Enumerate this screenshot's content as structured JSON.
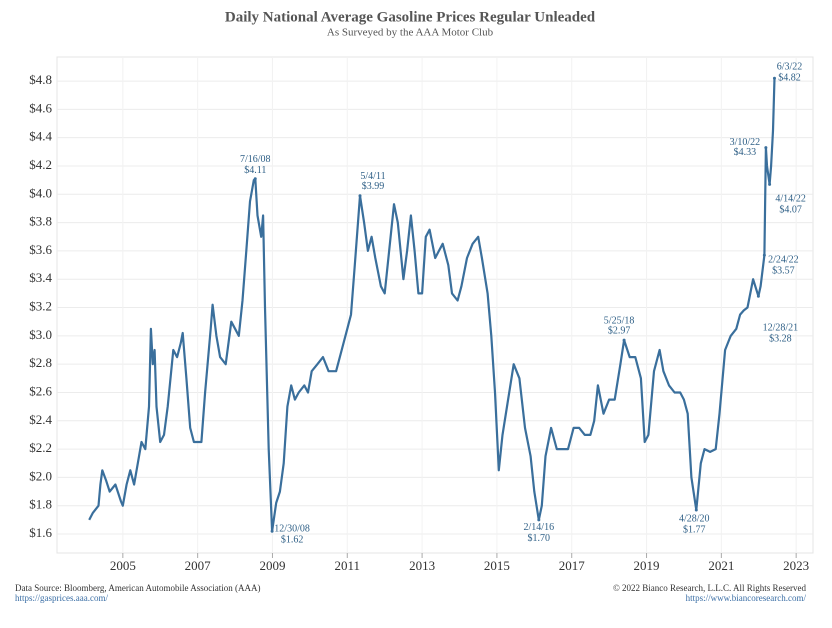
{
  "chart_data": {
    "type": "line",
    "title": "Daily National Average Gasoline Prices Regular Unleaded",
    "subtitle": "As Surveyed by the AAA Motor Club",
    "source": "Data Source: Bloomberg, American Automobile Association (AAA)",
    "source_url": "https://gasprices.aaa.com/",
    "copyright": "© 2022 Bianco Research, L.L.C. All Rights Reserved",
    "copyright_url": "https://www.biancoresearch.com/",
    "xlim": [
      2003.24,
      2023.45
    ],
    "xticks": [
      2005,
      2007,
      2009,
      2011,
      2013,
      2015,
      2017,
      2019,
      2021,
      2023
    ],
    "ylim": [
      1.466,
      4.97
    ],
    "yticks": [
      {
        "value": 1.6,
        "label": "$1.6"
      },
      {
        "value": 1.8,
        "label": "$1.8"
      },
      {
        "value": 2.0,
        "label": "$2.0"
      },
      {
        "value": 2.2,
        "label": "$2.2"
      },
      {
        "value": 2.4,
        "label": "$2.4"
      },
      {
        "value": 2.6,
        "label": "$2.6"
      },
      {
        "value": 2.8,
        "label": "$2.8"
      },
      {
        "value": 3.0,
        "label": "$3.0"
      },
      {
        "value": 3.2,
        "label": "$3.2"
      },
      {
        "value": 3.4,
        "label": "$3.4"
      },
      {
        "value": 3.6,
        "label": "$3.6"
      },
      {
        "value": 3.8,
        "label": "$3.8"
      },
      {
        "value": 4.0,
        "label": "$4.0"
      },
      {
        "value": 4.2,
        "label": "$4.2"
      },
      {
        "value": 4.4,
        "label": "$4.4"
      },
      {
        "value": 4.6,
        "label": "$4.6"
      },
      {
        "value": 4.8,
        "label": "$4.8"
      }
    ],
    "grid": true,
    "series": [
      {
        "color": "#3a6f9c",
        "x": [
          2004.1,
          2004.2,
          2004.35,
          2004.4,
          2004.45,
          2004.55,
          2004.65,
          2004.8,
          2004.95,
          2005.0,
          2005.1,
          2005.2,
          2005.3,
          2005.4,
          2005.5,
          2005.6,
          2005.7,
          2005.75,
          2005.8,
          2005.85,
          2005.9,
          2006.0,
          2006.1,
          2006.2,
          2006.35,
          2006.45,
          2006.55,
          2006.6,
          2006.7,
          2006.8,
          2006.9,
          2007.0,
          2007.1,
          2007.2,
          2007.35,
          2007.4,
          2007.5,
          2007.6,
          2007.75,
          2007.9,
          2008.0,
          2008.1,
          2008.2,
          2008.3,
          2008.4,
          2008.5,
          2008.54,
          2008.6,
          2008.7,
          2008.75,
          2008.8,
          2008.9,
          2008.99,
          2009.1,
          2009.2,
          2009.3,
          2009.4,
          2009.5,
          2009.6,
          2009.7,
          2009.85,
          2009.95,
          2010.05,
          2010.2,
          2010.35,
          2010.5,
          2010.7,
          2010.85,
          2011.0,
          2011.1,
          2011.2,
          2011.34,
          2011.45,
          2011.55,
          2011.65,
          2011.75,
          2011.9,
          2012.0,
          2012.1,
          2012.25,
          2012.35,
          2012.5,
          2012.6,
          2012.7,
          2012.8,
          2012.9,
          2013.0,
          2013.1,
          2013.2,
          2013.35,
          2013.45,
          2013.55,
          2013.7,
          2013.8,
          2013.95,
          2014.05,
          2014.2,
          2014.35,
          2014.5,
          2014.6,
          2014.75,
          2014.85,
          2014.95,
          2015.05,
          2015.15,
          2015.3,
          2015.45,
          2015.6,
          2015.75,
          2015.9,
          2016.0,
          2016.12,
          2016.2,
          2016.3,
          2016.45,
          2016.6,
          2016.75,
          2016.9,
          2017.05,
          2017.2,
          2017.35,
          2017.5,
          2017.6,
          2017.7,
          2017.85,
          2018.0,
          2018.15,
          2018.3,
          2018.4,
          2018.55,
          2018.7,
          2018.85,
          2018.95,
          2019.05,
          2019.2,
          2019.35,
          2019.45,
          2019.6,
          2019.75,
          2019.9,
          2020.0,
          2020.1,
          2020.2,
          2020.33,
          2020.45,
          2020.55,
          2020.7,
          2020.85,
          2020.95,
          2021.1,
          2021.25,
          2021.4,
          2021.5,
          2021.6,
          2021.7,
          2021.85,
          2021.99,
          2022.05,
          2022.15,
          2022.19,
          2022.22,
          2022.29,
          2022.33,
          2022.38,
          2022.42
        ],
        "values": [
          1.7,
          1.75,
          1.8,
          1.95,
          2.05,
          1.98,
          1.9,
          1.95,
          1.83,
          1.8,
          1.95,
          2.05,
          1.95,
          2.1,
          2.25,
          2.2,
          2.5,
          3.05,
          2.8,
          2.9,
          2.5,
          2.25,
          2.3,
          2.5,
          2.9,
          2.85,
          2.95,
          3.02,
          2.7,
          2.35,
          2.25,
          2.25,
          2.25,
          2.6,
          3.05,
          3.22,
          3.0,
          2.85,
          2.8,
          3.1,
          3.05,
          3.0,
          3.25,
          3.6,
          3.95,
          4.1,
          4.11,
          3.85,
          3.7,
          3.85,
          3.2,
          2.2,
          1.62,
          1.82,
          1.9,
          2.1,
          2.5,
          2.65,
          2.55,
          2.6,
          2.65,
          2.6,
          2.75,
          2.8,
          2.85,
          2.75,
          2.75,
          2.9,
          3.05,
          3.15,
          3.5,
          3.99,
          3.8,
          3.6,
          3.7,
          3.55,
          3.35,
          3.3,
          3.55,
          3.93,
          3.8,
          3.4,
          3.6,
          3.85,
          3.6,
          3.3,
          3.3,
          3.7,
          3.75,
          3.55,
          3.6,
          3.65,
          3.5,
          3.3,
          3.25,
          3.35,
          3.55,
          3.65,
          3.7,
          3.55,
          3.3,
          3.0,
          2.6,
          2.05,
          2.3,
          2.55,
          2.8,
          2.7,
          2.35,
          2.15,
          1.9,
          1.7,
          1.8,
          2.15,
          2.35,
          2.2,
          2.2,
          2.2,
          2.35,
          2.35,
          2.3,
          2.3,
          2.4,
          2.65,
          2.45,
          2.55,
          2.55,
          2.8,
          2.97,
          2.85,
          2.85,
          2.7,
          2.25,
          2.3,
          2.75,
          2.9,
          2.75,
          2.65,
          2.6,
          2.6,
          2.55,
          2.45,
          2.0,
          1.77,
          2.1,
          2.2,
          2.18,
          2.2,
          2.45,
          2.9,
          3.0,
          3.05,
          3.15,
          3.18,
          3.2,
          3.4,
          3.28,
          3.35,
          3.57,
          4.33,
          4.2,
          4.07,
          4.2,
          4.45,
          4.82
        ]
      }
    ],
    "annotations": [
      {
        "date": "7/16/08",
        "label": "$4.11",
        "x": 2008.54,
        "value": 4.11
      },
      {
        "date": "12/30/08",
        "label": "$1.62",
        "x": 2008.99,
        "value": 1.62
      },
      {
        "date": "5/4/11",
        "label": "$3.99",
        "x": 2011.34,
        "value": 3.99
      },
      {
        "date": "2/14/16",
        "label": "$1.70",
        "x": 2016.12,
        "value": 1.7
      },
      {
        "date": "5/25/18",
        "label": "$2.97",
        "x": 2018.4,
        "value": 2.97
      },
      {
        "date": "4/28/20",
        "label": "$1.77",
        "x": 2020.33,
        "value": 1.77
      },
      {
        "date": "3/10/22",
        "label": "$4.33",
        "x": 2022.19,
        "value": 4.33
      },
      {
        "date": "4/14/22",
        "label": "$4.07",
        "x": 2022.29,
        "value": 4.07
      },
      {
        "date": "2/24/22",
        "label": "$3.57",
        "x": 2022.15,
        "value": 3.57
      },
      {
        "date": "12/28/21",
        "label": "$3.28",
        "x": 2021.99,
        "value": 3.28
      },
      {
        "date": "6/3/22",
        "label": "$4.82",
        "x": 2022.42,
        "value": 4.82
      }
    ]
  }
}
